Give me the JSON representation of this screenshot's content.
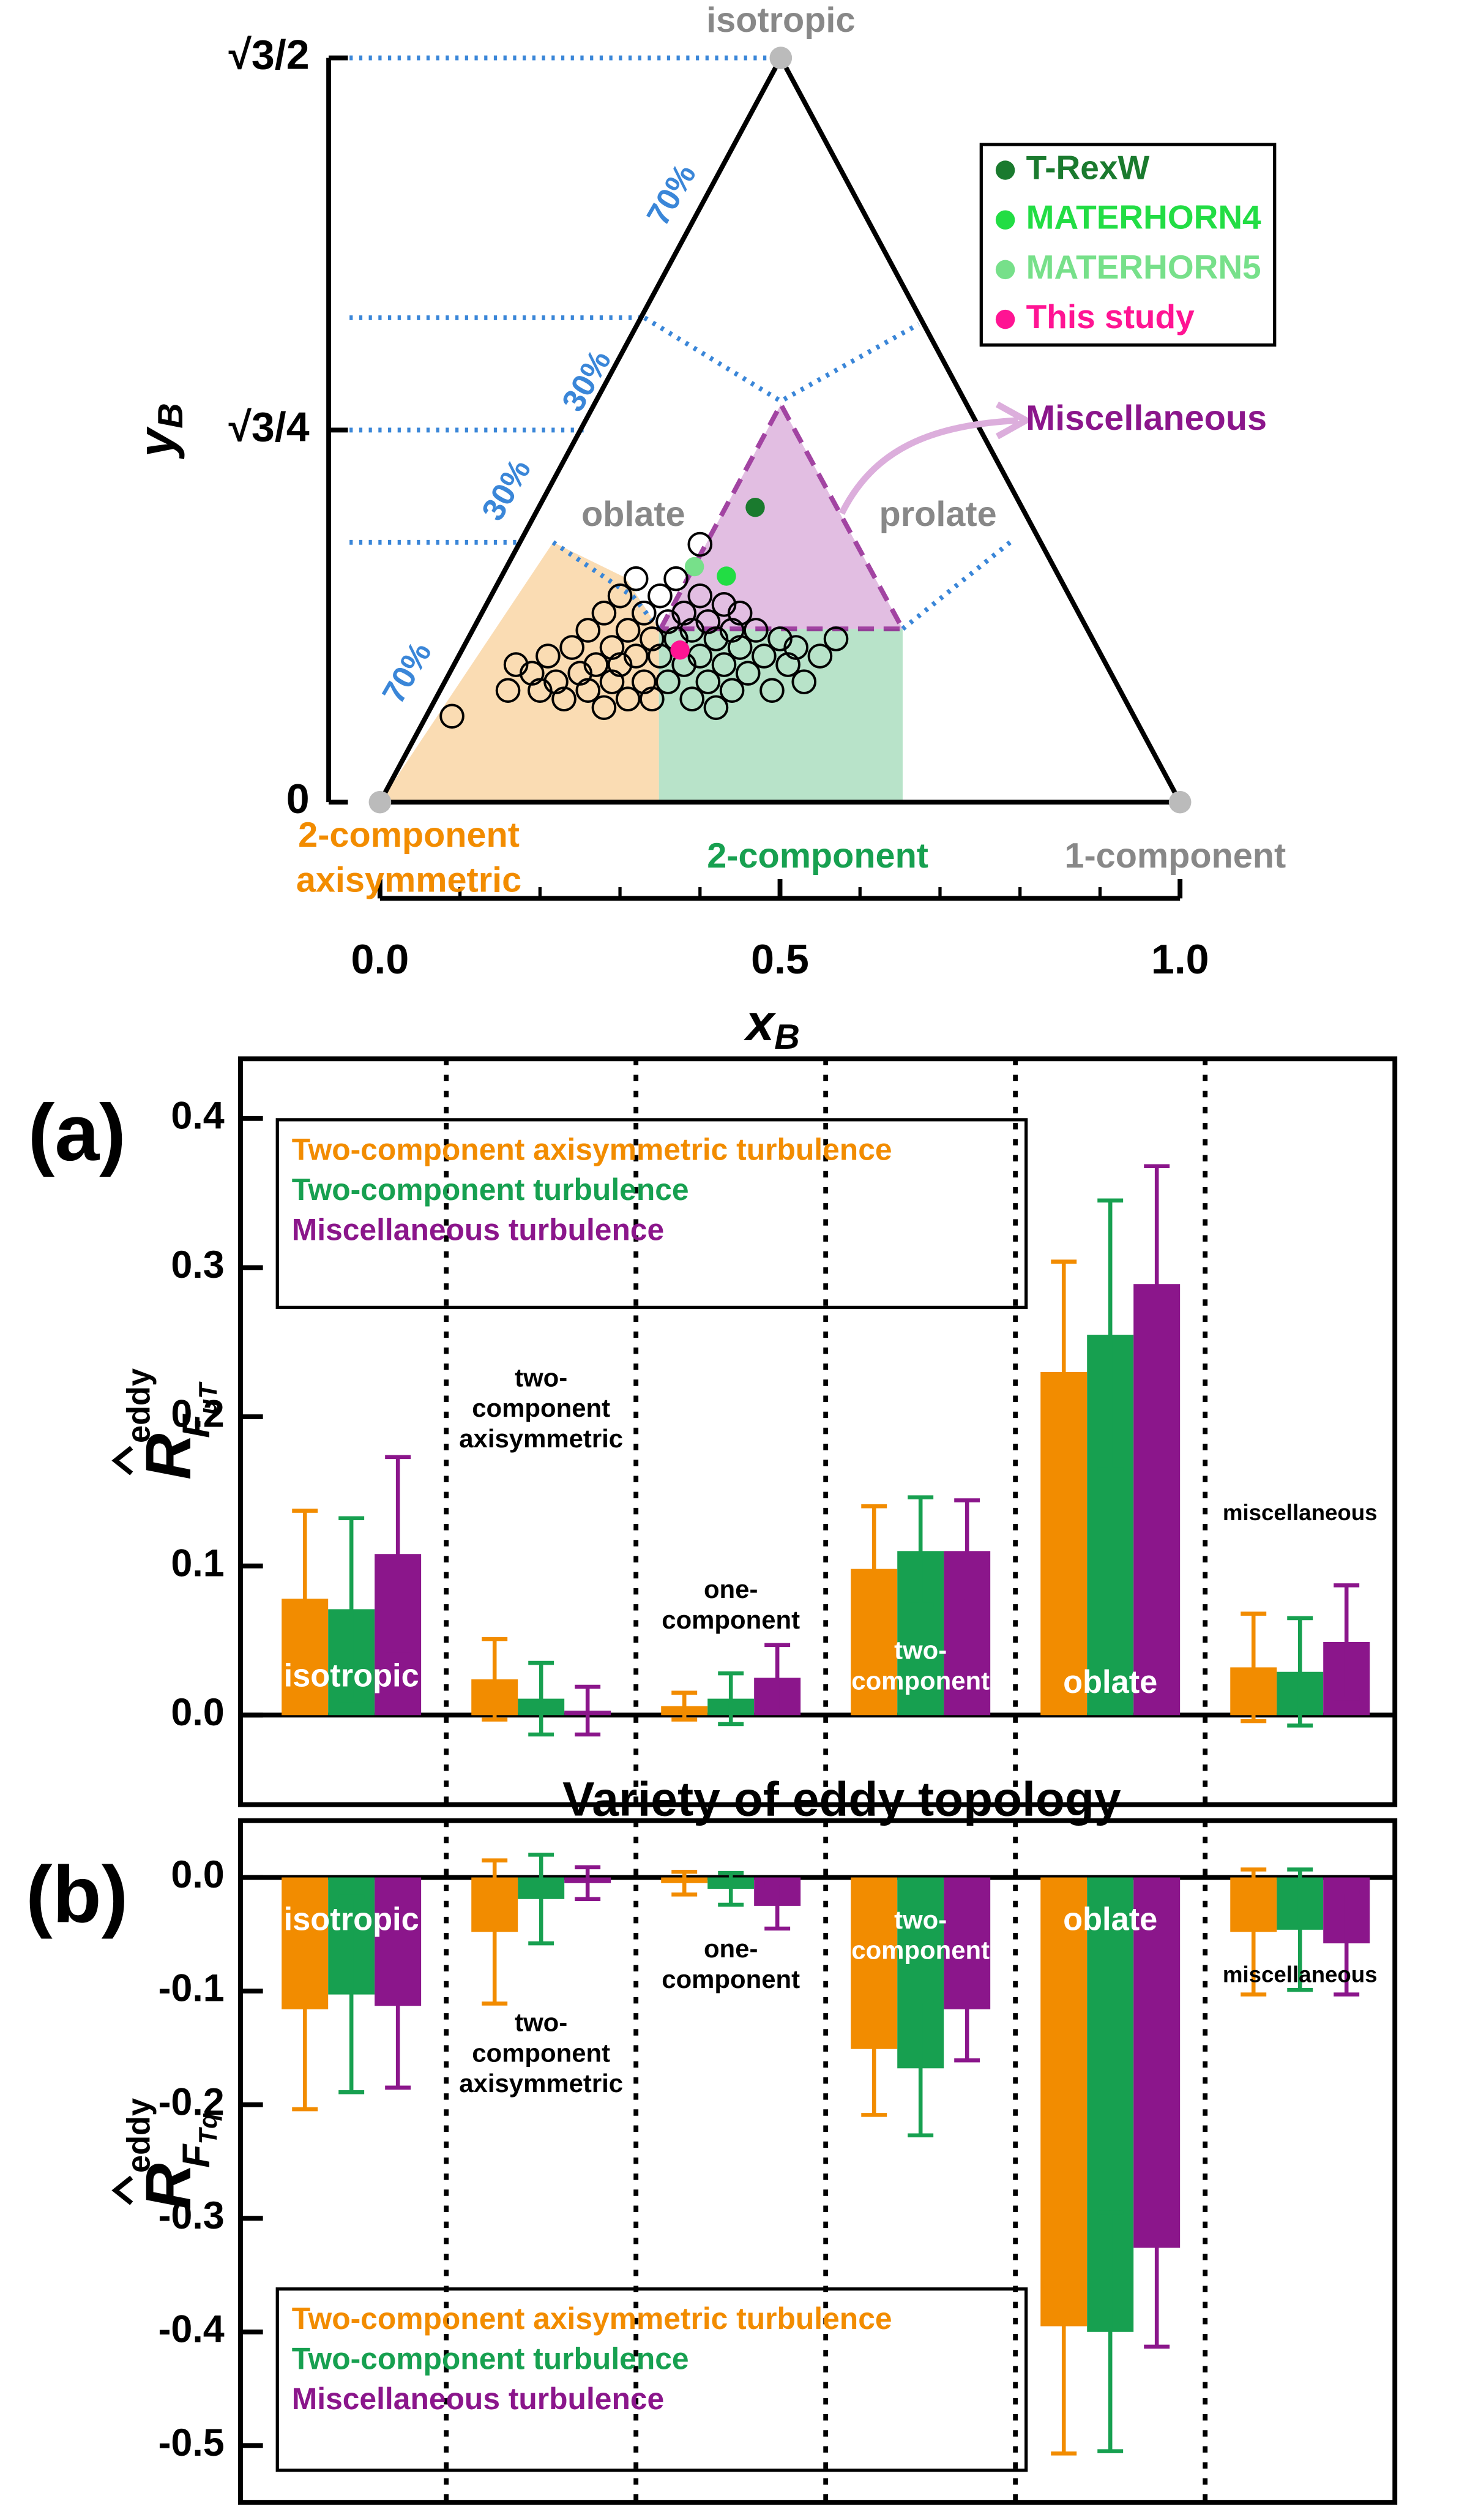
{
  "chart_data": [
    {
      "type": "ternary",
      "xlabel": "x",
      "xlabel_sub": "B",
      "ylabel": "y",
      "ylabel_sub": "B",
      "xlim": [
        0,
        1
      ],
      "ylim": [
        0,
        0.866
      ],
      "xticks": [
        {
          "value": 0,
          "label": "0.0"
        },
        {
          "value": 0.5,
          "label": "0.5"
        },
        {
          "value": 1,
          "label": "1.0"
        }
      ],
      "yticks": [
        0,
        {
          "value": 0.433,
          "label": "√3/4"
        },
        {
          "value": 0.866,
          "label": "√3/2"
        }
      ],
      "annotations": [
        "isotropic",
        "oblate",
        "prolate",
        "Miscellaneous",
        "2-component",
        "axisymmetric",
        "2-component",
        "1-component",
        "70%",
        "30%",
        "30%",
        "70%"
      ],
      "series": [
        {
          "color": "#000000",
          "hollow": true,
          "x": [
            0.09,
            0.16,
            0.17,
            0.19,
            0.2,
            0.21,
            0.22,
            0.23,
            0.24,
            0.25,
            0.26,
            0.26,
            0.27,
            0.28,
            0.28,
            0.29,
            0.29,
            0.3,
            0.3,
            0.31,
            0.31,
            0.32,
            0.32,
            0.33,
            0.33,
            0.34,
            0.34,
            0.35,
            0.35,
            0.36,
            0.36,
            0.37,
            0.37,
            0.38,
            0.38,
            0.39,
            0.39,
            0.4,
            0.4,
            0.41,
            0.41,
            0.42,
            0.42,
            0.43,
            0.43,
            0.44,
            0.44,
            0.45,
            0.45,
            0.46,
            0.47,
            0.48,
            0.49,
            0.5,
            0.51,
            0.52,
            0.53,
            0.55,
            0.57,
            0.4
          ],
          "values": [
            0.1,
            0.13,
            0.16,
            0.15,
            0.13,
            0.17,
            0.14,
            0.12,
            0.18,
            0.15,
            0.13,
            0.2,
            0.16,
            0.22,
            0.11,
            0.18,
            0.14,
            0.24,
            0.16,
            0.12,
            0.2,
            0.17,
            0.26,
            0.14,
            0.22,
            0.19,
            0.12,
            0.24,
            0.17,
            0.21,
            0.14,
            0.19,
            0.26,
            0.16,
            0.22,
            0.12,
            0.2,
            0.24,
            0.17,
            0.14,
            0.21,
            0.19,
            0.11,
            0.23,
            0.16,
            0.2,
            0.13,
            0.18,
            0.22,
            0.15,
            0.2,
            0.17,
            0.13,
            0.19,
            0.16,
            0.18,
            0.14,
            0.17,
            0.19,
            0.3
          ]
        },
        {
          "name": "T-RexW",
          "color": "#1a7a2e",
          "x": [
            0.469
          ],
          "values": [
            0.343
          ]
        },
        {
          "name": "MATERHORN4",
          "color": "#22dd44",
          "x": [
            0.433
          ],
          "values": [
            0.263
          ]
        },
        {
          "name": "MATERHORN5",
          "color": "#77e08a",
          "x": [
            0.393
          ],
          "values": [
            0.274
          ]
        },
        {
          "name": "This study",
          "color": "#ff1493",
          "x": [
            0.375
          ],
          "values": [
            0.177
          ]
        }
      ]
    },
    {
      "type": "bar",
      "panel": "(a)",
      "xlabel": "Variety of eddy topology",
      "ylabel": {
        "base": "R",
        "sup": "eddy",
        "sub": "F",
        "subsub": "uT"
      },
      "categories": [
        [
          "isotropic"
        ],
        [
          "two-",
          "component",
          "axisymmetric"
        ],
        [
          "one-",
          "component"
        ],
        [
          "two-",
          "component"
        ],
        [
          "oblate"
        ],
        [
          "miscellaneous"
        ]
      ],
      "ylim": [
        -0.06,
        0.44
      ],
      "yticks": [
        {
          "value": 0,
          "label": "0.0"
        },
        {
          "value": 0.1,
          "label": "0.1"
        },
        {
          "value": 0.2,
          "label": "0.2"
        },
        {
          "value": 0.3,
          "label": "0.3"
        },
        {
          "value": 0.4,
          "label": "0.4"
        }
      ],
      "series": [
        {
          "name": "Two-component axisymmetric turbulence",
          "color": "#f28c00",
          "values": [
            0.078,
            0.024,
            0.006,
            0.098,
            0.23,
            0.032
          ],
          "errors": [
            0.059,
            0.027,
            0.009,
            0.042,
            0.074,
            0.036
          ]
        },
        {
          "name": "Two-component turbulence",
          "color": "#17a050",
          "values": [
            0.071,
            0.011,
            0.011,
            0.11,
            0.255,
            0.029
          ],
          "errors": [
            0.061,
            0.024,
            0.017,
            0.036,
            0.09,
            0.036
          ]
        },
        {
          "name": "Miscellaneous turbulence",
          "color": "#8b168b",
          "values": [
            0.108,
            0.003,
            0.025,
            0.11,
            0.289,
            0.049
          ],
          "errors": [
            0.065,
            0.016,
            0.022,
            0.034,
            0.079,
            0.038
          ]
        }
      ]
    },
    {
      "type": "bar",
      "panel": "(b)",
      "ylabel": {
        "base": "R",
        "sup": "eddy",
        "sub": "F",
        "subsub": "Tq"
      },
      "categories": [
        [
          "isotropic"
        ],
        [
          "two-",
          "component",
          "axisymmetric"
        ],
        [
          "one-",
          "component"
        ],
        [
          "two-",
          "component"
        ],
        [
          "oblate"
        ],
        [
          "miscellaneous"
        ]
      ],
      "ylim": [
        -0.55,
        0.05
      ],
      "yticks": [
        {
          "value": 0,
          "label": "0.0"
        },
        -0.1,
        -0.2,
        -0.3,
        -0.4,
        -0.5
      ],
      "series": [
        {
          "name": "Two-component axisymmetric turbulence",
          "color": "#f28c00",
          "values": [
            -0.116,
            -0.048,
            -0.005,
            -0.151,
            -0.395,
            -0.048
          ],
          "errors": [
            0.088,
            0.063,
            0.01,
            0.058,
            0.112,
            0.055
          ]
        },
        {
          "name": "Two-component turbulence",
          "color": "#17a050",
          "values": [
            -0.103,
            -0.019,
            -0.01,
            -0.168,
            -0.4,
            -0.046
          ],
          "errors": [
            0.086,
            0.039,
            0.014,
            0.059,
            0.105,
            0.053
          ]
        },
        {
          "name": "Miscellaneous turbulence",
          "color": "#8b168b",
          "values": [
            -0.113,
            -0.005,
            -0.025,
            -0.116,
            -0.326,
            -0.058
          ],
          "errors": [
            0.072,
            0.014,
            0.02,
            0.045,
            0.087,
            0.045
          ]
        }
      ]
    }
  ]
}
